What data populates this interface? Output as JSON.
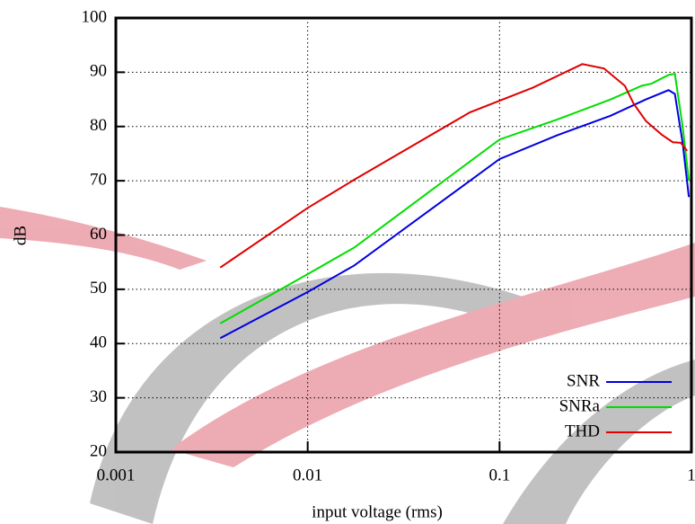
{
  "chart_data": {
    "type": "line",
    "xlabel": "input voltage (rms)",
    "ylabel": "dB",
    "xscale": "log",
    "xlim": [
      0.001,
      1
    ],
    "xticks": [
      0.001,
      0.01,
      0.1,
      1
    ],
    "ylim": [
      20,
      100
    ],
    "yticks": [
      20,
      30,
      40,
      50,
      60,
      70,
      80,
      90,
      100
    ],
    "grid": true,
    "legend": "lower right",
    "series": [
      {
        "name": "SNR",
        "color": "#0000e0",
        "x": [
          0.0035,
          0.01,
          0.0175,
          0.1,
          0.2,
          0.38,
          0.58,
          0.76,
          0.82,
          0.9,
          0.97
        ],
        "values": [
          41,
          49.5,
          54.4,
          74,
          78.4,
          82,
          85,
          86.7,
          86,
          77,
          67
        ]
      },
      {
        "name": "SNRa",
        "color": "#00dd00",
        "x": [
          0.0035,
          0.01,
          0.0175,
          0.1,
          0.2,
          0.38,
          0.55,
          0.62,
          0.76,
          0.82,
          0.9,
          0.97
        ],
        "values": [
          43.7,
          52.8,
          57.7,
          77.6,
          81.3,
          85,
          87.5,
          87.9,
          89.5,
          89.7,
          80,
          70
        ]
      },
      {
        "name": "THD",
        "color": "#e00000",
        "x": [
          0.0035,
          0.01,
          0.0175,
          0.07,
          0.15,
          0.27,
          0.35,
          0.45,
          0.5,
          0.58,
          0.7,
          0.8,
          0.88,
          0.95
        ],
        "values": [
          54,
          65,
          70.2,
          82.6,
          87.2,
          91.5,
          90.7,
          87.5,
          84.2,
          81,
          78.5,
          77.1,
          77,
          75.5
        ]
      }
    ]
  }
}
